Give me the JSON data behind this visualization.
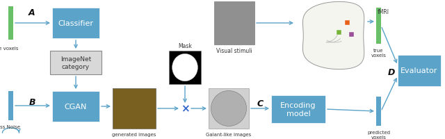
{
  "fig_width": 6.4,
  "fig_height": 2.01,
  "dpi": 100,
  "bg_color": "#ffffff",
  "box_color": "#5ba3c9",
  "gray_box_color": "#d8d8d8",
  "gray_box_edge": "#888888",
  "arrow_color": "#5ba3c9",
  "label_color": "#333333",
  "green_bar_color": "#6abf69",
  "blue_bar_color": "#5ba3c9",
  "label_A": "A",
  "label_B": "B",
  "label_C": "C",
  "label_D": "D",
  "classifier_label": "Classifier",
  "cgan_label": "CGAN",
  "imagenet_label": "ImageNet\ncategory",
  "encoding_label": "Encoding\nmodel",
  "evaluator_label": "Evaluator",
  "true_voxels_top": "true voxels",
  "true_voxels_right": "true\nvoxels",
  "predicted_voxels": "predicted\nvoxels",
  "gauss_noise": "Gauss Noise",
  "generated_images": "generated images",
  "galant_like": "Galant-like images",
  "mask_label": "Mask",
  "visual_stimuli": "Visual stimuli",
  "fmri_label": "fMRI",
  "multiply_symbol": "×",
  "roi_colors": [
    "#e8611a",
    "#78b43c",
    "#9b4f96"
  ]
}
